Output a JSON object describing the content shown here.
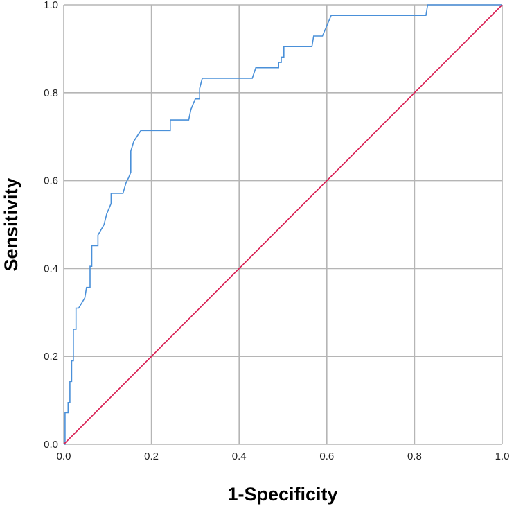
{
  "chart_data": {
    "type": "line",
    "title": "",
    "xlabel": "1-Specificity",
    "ylabel": "Sensitivity",
    "xlim": [
      0,
      1
    ],
    "ylim": [
      0,
      1
    ],
    "x_ticks": [
      "0.0",
      "0.2",
      "0.4",
      "0.6",
      "0.8",
      "1.0"
    ],
    "y_ticks": [
      "0.0",
      "0.2",
      "0.4",
      "0.6",
      "0.8",
      "1.0"
    ],
    "grid": true,
    "legend": "none",
    "series": [
      {
        "color": "#4a90d9",
        "x": [
          0.0,
          0.003,
          0.003,
          0.01,
          0.01,
          0.014,
          0.014,
          0.018,
          0.018,
          0.022,
          0.022,
          0.028,
          0.028,
          0.03,
          0.033,
          0.034,
          0.048,
          0.052,
          0.06,
          0.06,
          0.064,
          0.064,
          0.07,
          0.07,
          0.078,
          0.078,
          0.092,
          0.098,
          0.108,
          0.108,
          0.135,
          0.142,
          0.148,
          0.148,
          0.153,
          0.153,
          0.16,
          0.176,
          0.176,
          0.243,
          0.243,
          0.285,
          0.29,
          0.3,
          0.31,
          0.31,
          0.316,
          0.326,
          0.43,
          0.438,
          0.49,
          0.49,
          0.496,
          0.496,
          0.502,
          0.502,
          0.566,
          0.57,
          0.59,
          0.61,
          0.618,
          0.826,
          0.83,
          1.0
        ],
        "y": [
          0.0,
          0.0,
          0.072,
          0.072,
          0.095,
          0.095,
          0.143,
          0.143,
          0.19,
          0.19,
          0.262,
          0.262,
          0.31,
          0.31,
          0.31,
          0.31,
          0.333,
          0.357,
          0.357,
          0.405,
          0.405,
          0.452,
          0.452,
          0.452,
          0.452,
          0.476,
          0.5,
          0.524,
          0.548,
          0.571,
          0.571,
          0.595,
          0.607,
          0.607,
          0.619,
          0.667,
          0.69,
          0.714,
          0.714,
          0.714,
          0.738,
          0.738,
          0.762,
          0.786,
          0.786,
          0.81,
          0.833,
          0.833,
          0.833,
          0.857,
          0.857,
          0.869,
          0.869,
          0.881,
          0.881,
          0.905,
          0.905,
          0.929,
          0.929,
          0.976,
          0.976,
          0.976,
          1.0,
          1.0
        ]
      },
      {
        "color": "#d81b50",
        "x": [
          0.0,
          1.0
        ],
        "y": [
          0.0,
          1.0
        ]
      }
    ]
  }
}
